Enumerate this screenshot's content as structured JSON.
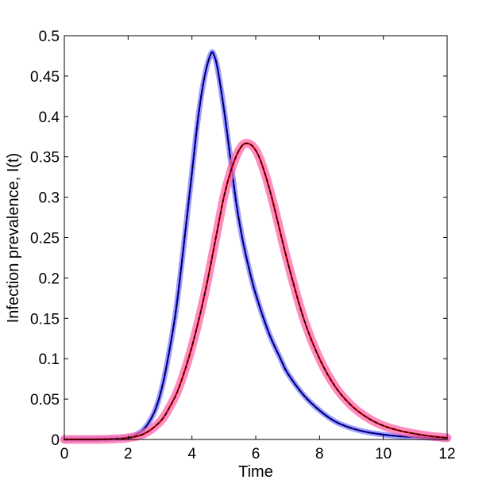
{
  "chart_data": {
    "type": "line",
    "title": "",
    "xlabel": "Time",
    "ylabel": "Infection prevalence, I(t)",
    "xlim": [
      0,
      12
    ],
    "ylim": [
      0,
      0.5
    ],
    "xticks": [
      "0",
      "2",
      "4",
      "6",
      "8",
      "10",
      "12"
    ],
    "yticks": [
      "0",
      "0.05",
      "0.1",
      "0.15",
      "0.2",
      "0.25",
      "0.3",
      "0.35",
      "0.4",
      "0.45",
      "0.5"
    ],
    "grid": false,
    "legend": "none",
    "series": [
      {
        "color": "#0000cc",
        "band_color": "#8080ff",
        "x": [
          0,
          1,
          1.5,
          2,
          2.2,
          2.5,
          2.8,
          3,
          3.2,
          3.5,
          3.8,
          4,
          4.2,
          4.4,
          4.6,
          4.7,
          4.8,
          5,
          5.2,
          5.4,
          5.6,
          5.8,
          6,
          6.4,
          6.8,
          7,
          7.5,
          8,
          8.5,
          9,
          9.5,
          10,
          10.5,
          11,
          11.5,
          12
        ],
        "y": [
          0,
          0.0005,
          0.001,
          0.002,
          0.005,
          0.013,
          0.032,
          0.055,
          0.09,
          0.16,
          0.26,
          0.33,
          0.4,
          0.45,
          0.478,
          0.475,
          0.46,
          0.41,
          0.35,
          0.29,
          0.245,
          0.21,
          0.18,
          0.133,
          0.098,
          0.082,
          0.055,
          0.036,
          0.022,
          0.014,
          0.009,
          0.006,
          0.004,
          0.003,
          0.002,
          0.001
        ]
      },
      {
        "color": "#cc0000",
        "band_color": "#ff66aa",
        "x": [
          0,
          1,
          1.5,
          2,
          2.5,
          3,
          3.3,
          3.6,
          4,
          4.4,
          4.8,
          5,
          5.2,
          5.4,
          5.6,
          5.8,
          6,
          6.2,
          6.5,
          7,
          7.5,
          8,
          8.5,
          9,
          9.5,
          10,
          10.5,
          11,
          11.5,
          12
        ],
        "y": [
          0,
          0,
          0.0005,
          0.002,
          0.007,
          0.022,
          0.04,
          0.065,
          0.115,
          0.18,
          0.26,
          0.3,
          0.33,
          0.352,
          0.365,
          0.366,
          0.358,
          0.34,
          0.3,
          0.22,
          0.15,
          0.1,
          0.065,
          0.042,
          0.027,
          0.017,
          0.011,
          0.007,
          0.004,
          0.002
        ]
      }
    ]
  }
}
